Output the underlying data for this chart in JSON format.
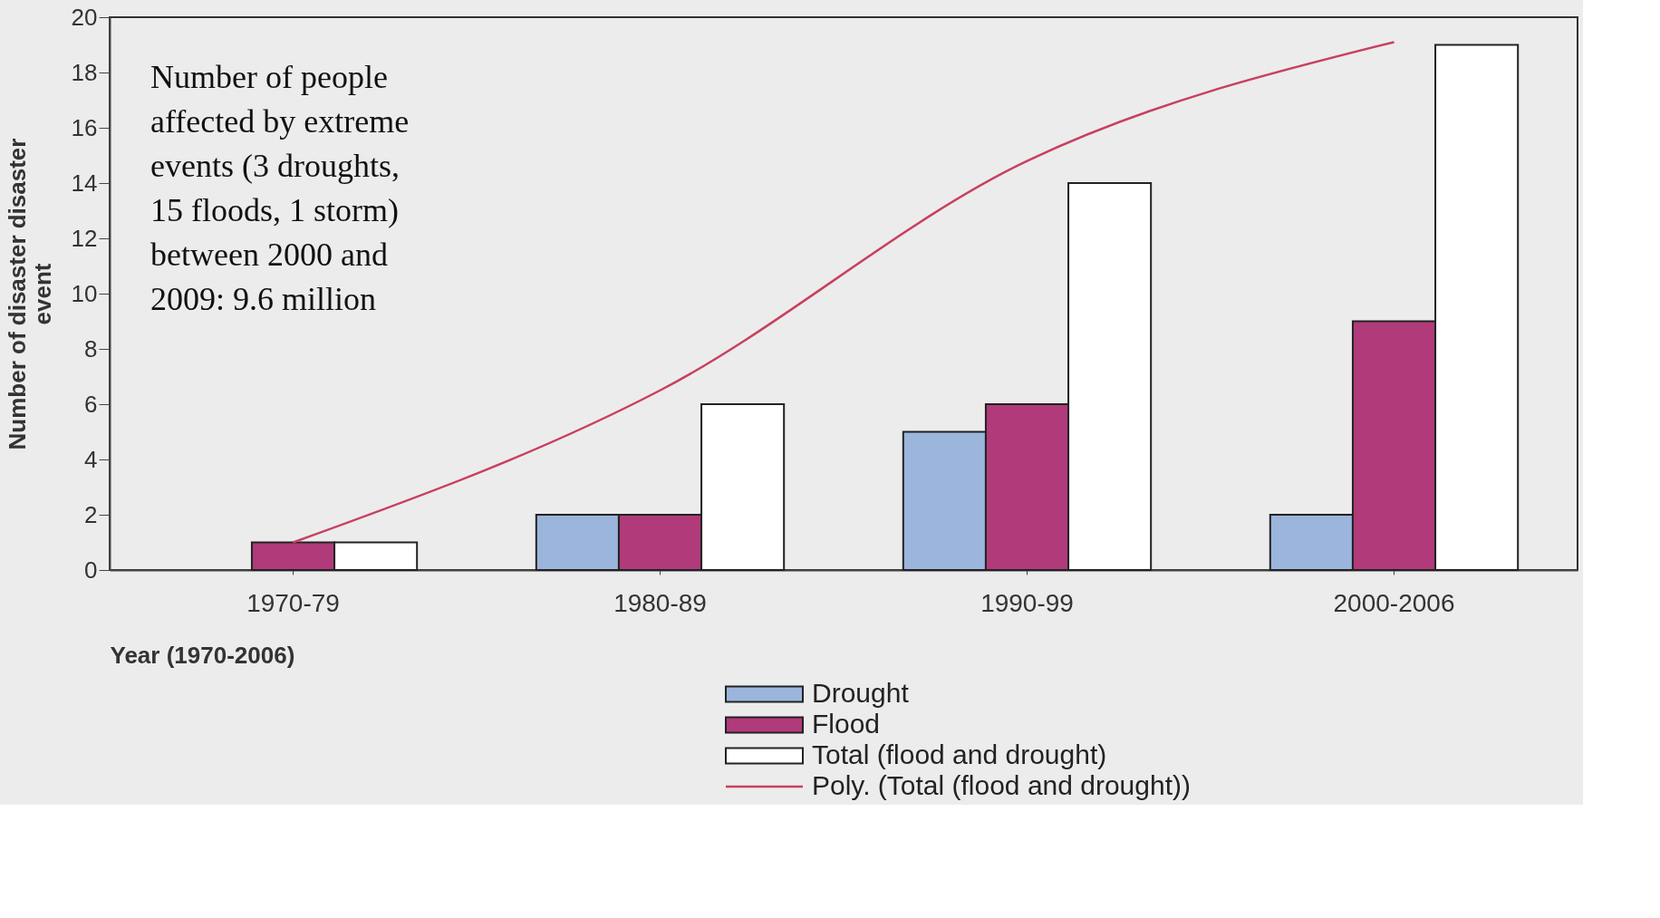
{
  "chart_data": {
    "type": "bar",
    "xlabel": "Year (1970-2006)",
    "ylabel": "Number of disaster disaster event",
    "categories": [
      "1970-79",
      "1980-89",
      "1990-99",
      "2000-2006"
    ],
    "series": [
      {
        "name": "Drought",
        "color": "#9bb5dc",
        "values": [
          null,
          2,
          5,
          2
        ]
      },
      {
        "name": "Flood",
        "color": "#b03a7a",
        "values": [
          1,
          2,
          6,
          9
        ]
      },
      {
        "name": "Total (flood and drought)",
        "color": "#ffffff",
        "values": [
          1,
          6,
          14,
          19
        ]
      },
      {
        "name": "Poly. (Total (flood and drought))",
        "type": "line",
        "color": "#c8405f",
        "x": [
          "1970-79",
          "1980-89",
          "1990-99",
          "2000-2006"
        ],
        "values": [
          1,
          6.5,
          14.8,
          19.1
        ]
      }
    ],
    "ylim": [
      0,
      20
    ],
    "yticks": [
      0,
      2,
      4,
      6,
      8,
      10,
      12,
      14,
      16,
      18,
      20
    ],
    "grid": false,
    "legend": "bottom",
    "annotations": [
      "Number of people affected by extreme events (3 droughts, 15 floods, 1 storm) between 2000 and 2009: 9.6 million"
    ]
  }
}
